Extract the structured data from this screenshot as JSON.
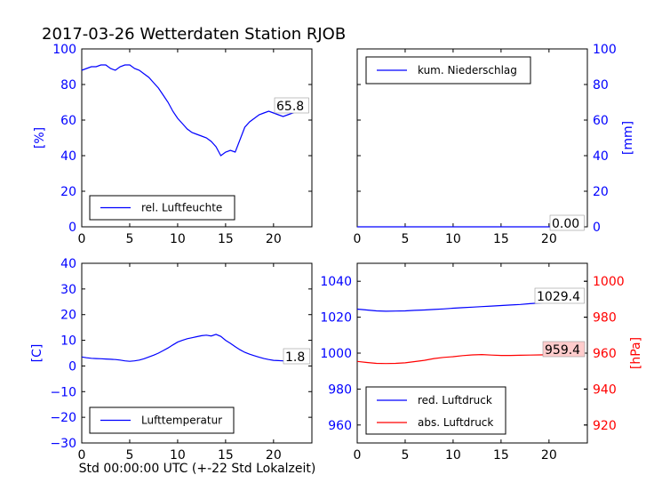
{
  "title": "2017-03-26 Wetterdaten Station RJOB",
  "xlabel": "Std 00:00:00 UTC (+-22 Std Lokalzeit)",
  "colors": {
    "blue": "#0000ff",
    "red": "#ff0000",
    "black": "#000000"
  },
  "chart_data": [
    {
      "type": "line",
      "panel": "top-left",
      "ylabel": "[%]",
      "xlim": [
        0,
        24
      ],
      "ylim": [
        0,
        100
      ],
      "x_ticks": [
        0,
        5,
        10,
        15,
        20
      ],
      "y_ticks": [
        0,
        20,
        40,
        60,
        80,
        100
      ],
      "legend": "lower-left",
      "annotation": "65.8",
      "series": [
        {
          "name": "rel. Luftfeuchte",
          "color": "#0000ff",
          "x": [
            0,
            0.5,
            1,
            1.5,
            2,
            2.5,
            3,
            3.5,
            4,
            4.5,
            5,
            5.5,
            6,
            6.5,
            7,
            7.5,
            8,
            8.5,
            9,
            9.5,
            10,
            10.5,
            11,
            11.5,
            12,
            12.5,
            13,
            13.5,
            14,
            14.5,
            15,
            15.5,
            16,
            16.5,
            17,
            17.5,
            18,
            18.5,
            19,
            19.5,
            20,
            20.5,
            21,
            21.5,
            22,
            22.5,
            23,
            23.5
          ],
          "values": [
            88,
            89,
            90,
            90,
            91,
            91,
            89,
            88,
            90,
            91,
            91,
            89,
            88,
            86,
            84,
            81,
            78,
            74,
            70,
            65,
            61,
            58,
            55,
            53,
            52,
            51,
            50,
            48,
            45,
            40,
            42,
            43,
            42,
            49,
            56,
            59,
            61,
            63,
            64,
            65,
            64,
            63,
            62,
            63,
            64,
            65,
            66,
            66
          ]
        }
      ]
    },
    {
      "type": "line",
      "panel": "top-right",
      "ylabel": "[mm]",
      "xlim": [
        0,
        24
      ],
      "ylim": [
        0,
        100
      ],
      "x_ticks": [
        0,
        5,
        10,
        15,
        20
      ],
      "y_ticks": [
        0,
        20,
        40,
        60,
        80,
        100
      ],
      "legend": "upper-left",
      "annotation": "0.00",
      "series": [
        {
          "name": "kum. Niederschlag",
          "color": "#0000ff",
          "x": [
            0,
            23.5
          ],
          "values": [
            0,
            0
          ]
        }
      ]
    },
    {
      "type": "line",
      "panel": "bottom-left",
      "ylabel": "[C]",
      "xlim": [
        0,
        24
      ],
      "ylim": [
        -30,
        40
      ],
      "x_ticks": [
        0,
        5,
        10,
        15,
        20
      ],
      "y_ticks": [
        -30,
        -20,
        -10,
        0,
        10,
        20,
        30,
        40
      ],
      "legend": "lower-left",
      "annotation": "1.8",
      "series": [
        {
          "name": "Lufttemperatur",
          "color": "#0000ff",
          "x": [
            0,
            0.5,
            1,
            1.5,
            2,
            2.5,
            3,
            3.5,
            4,
            4.5,
            5,
            5.5,
            6,
            6.5,
            7,
            7.5,
            8,
            8.5,
            9,
            9.5,
            10,
            10.5,
            11,
            11.5,
            12,
            12.5,
            13,
            13.5,
            14,
            14.5,
            15,
            15.5,
            16,
            16.5,
            17,
            17.5,
            18,
            18.5,
            19,
            19.5,
            20,
            20.5,
            21,
            21.5,
            22,
            22.5,
            23,
            23.5
          ],
          "values": [
            3.5,
            3.2,
            3.0,
            2.9,
            2.8,
            2.7,
            2.6,
            2.5,
            2.3,
            2.0,
            1.8,
            2.0,
            2.3,
            2.8,
            3.5,
            4.2,
            5.0,
            6.0,
            7.0,
            8.2,
            9.3,
            10.0,
            10.6,
            11.0,
            11.4,
            11.8,
            12.0,
            11.7,
            12.3,
            11.5,
            10.0,
            8.8,
            7.5,
            6.3,
            5.3,
            4.6,
            4.0,
            3.4,
            2.9,
            2.5,
            2.2,
            2.1,
            2.0,
            1.9,
            1.8,
            1.8,
            1.9,
            1.8
          ]
        }
      ]
    },
    {
      "type": "line",
      "panel": "bottom-right",
      "xlim": [
        0,
        24
      ],
      "ylim": [
        950,
        1050
      ],
      "ylim_right": [
        910,
        1010
      ],
      "ylabel_right": "[hPa]",
      "x_ticks": [
        0,
        5,
        10,
        15,
        20
      ],
      "y_ticks": [
        960,
        980,
        1000,
        1020,
        1040
      ],
      "y_ticks_right": [
        920,
        940,
        960,
        980,
        1000
      ],
      "legend": "lower-left",
      "annotations": [
        "1029.4",
        "959.4"
      ],
      "series": [
        {
          "name": "red. Luftdruck",
          "color": "#0000ff",
          "axis": "left",
          "x": [
            0,
            1,
            2,
            3,
            4,
            5,
            6,
            7,
            8,
            9,
            10,
            11,
            12,
            13,
            14,
            15,
            16,
            17,
            18,
            19,
            20,
            21,
            22,
            23,
            23.5
          ],
          "values": [
            1024.5,
            1024.0,
            1023.5,
            1023.3,
            1023.4,
            1023.5,
            1023.8,
            1024.0,
            1024.3,
            1024.6,
            1025.0,
            1025.3,
            1025.6,
            1025.9,
            1026.2,
            1026.5,
            1026.8,
            1027.1,
            1027.5,
            1027.9,
            1028.3,
            1028.7,
            1029.0,
            1029.3,
            1029.4
          ]
        },
        {
          "name": "abs. Luftdruck",
          "color": "#ff0000",
          "axis": "right",
          "x": [
            0,
            1,
            2,
            3,
            4,
            5,
            6,
            7,
            8,
            9,
            10,
            11,
            12,
            13,
            14,
            15,
            16,
            17,
            18,
            19,
            20,
            21,
            22,
            23,
            23.5
          ],
          "values": [
            955.4,
            954.8,
            954.3,
            954.2,
            954.3,
            954.6,
            955.3,
            956.0,
            957.0,
            957.6,
            958.0,
            958.6,
            959.0,
            959.2,
            958.9,
            958.7,
            958.7,
            958.8,
            958.9,
            959.0,
            959.1,
            959.2,
            959.3,
            959.4,
            959.4
          ]
        }
      ]
    }
  ]
}
